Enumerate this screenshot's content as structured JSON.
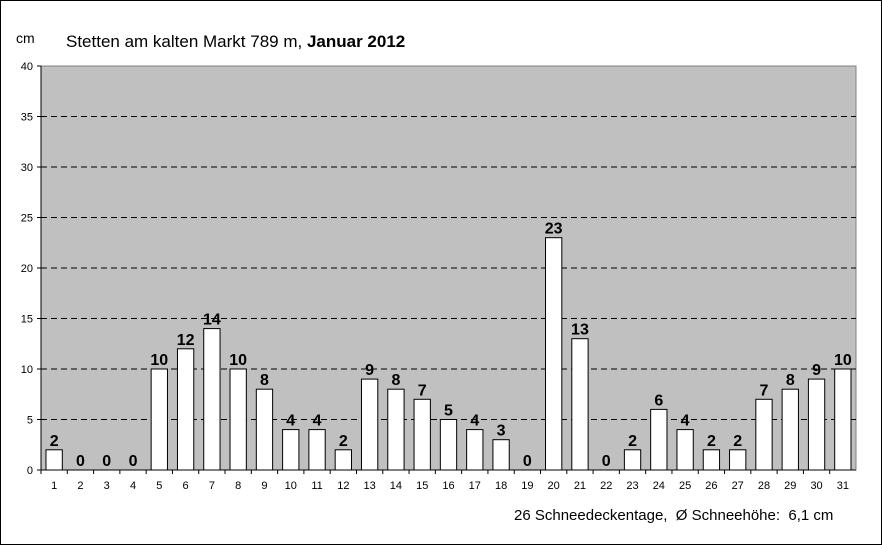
{
  "chart_data": {
    "type": "bar",
    "title": "Stetten am kalten Markt 789 m, ",
    "title_bold": "Januar 2012",
    "ylabel": "cm",
    "xlabel": "",
    "ylim": [
      0,
      40
    ],
    "yticks": [
      0,
      5,
      10,
      15,
      20,
      25,
      30,
      35,
      40
    ],
    "grid": "horizontal dashed",
    "categories": [
      "1",
      "2",
      "3",
      "4",
      "5",
      "6",
      "7",
      "8",
      "9",
      "10",
      "11",
      "12",
      "13",
      "14",
      "15",
      "16",
      "17",
      "18",
      "19",
      "20",
      "21",
      "22",
      "23",
      "24",
      "25",
      "26",
      "27",
      "28",
      "29",
      "30",
      "31"
    ],
    "values": [
      2,
      0,
      0,
      0,
      10,
      12,
      14,
      10,
      8,
      4,
      4,
      2,
      9,
      8,
      7,
      5,
      4,
      3,
      0,
      23,
      13,
      0,
      2,
      6,
      4,
      2,
      2,
      7,
      8,
      9,
      10
    ],
    "colors": {
      "plot_bg": "#c0c0c0",
      "bar_fill": "#ffffff",
      "bar_stroke": "#000000",
      "grid": "#000000"
    }
  },
  "footer": "26 Schneedeckentage,  Ø Schneehöhe:  6,1 cm"
}
